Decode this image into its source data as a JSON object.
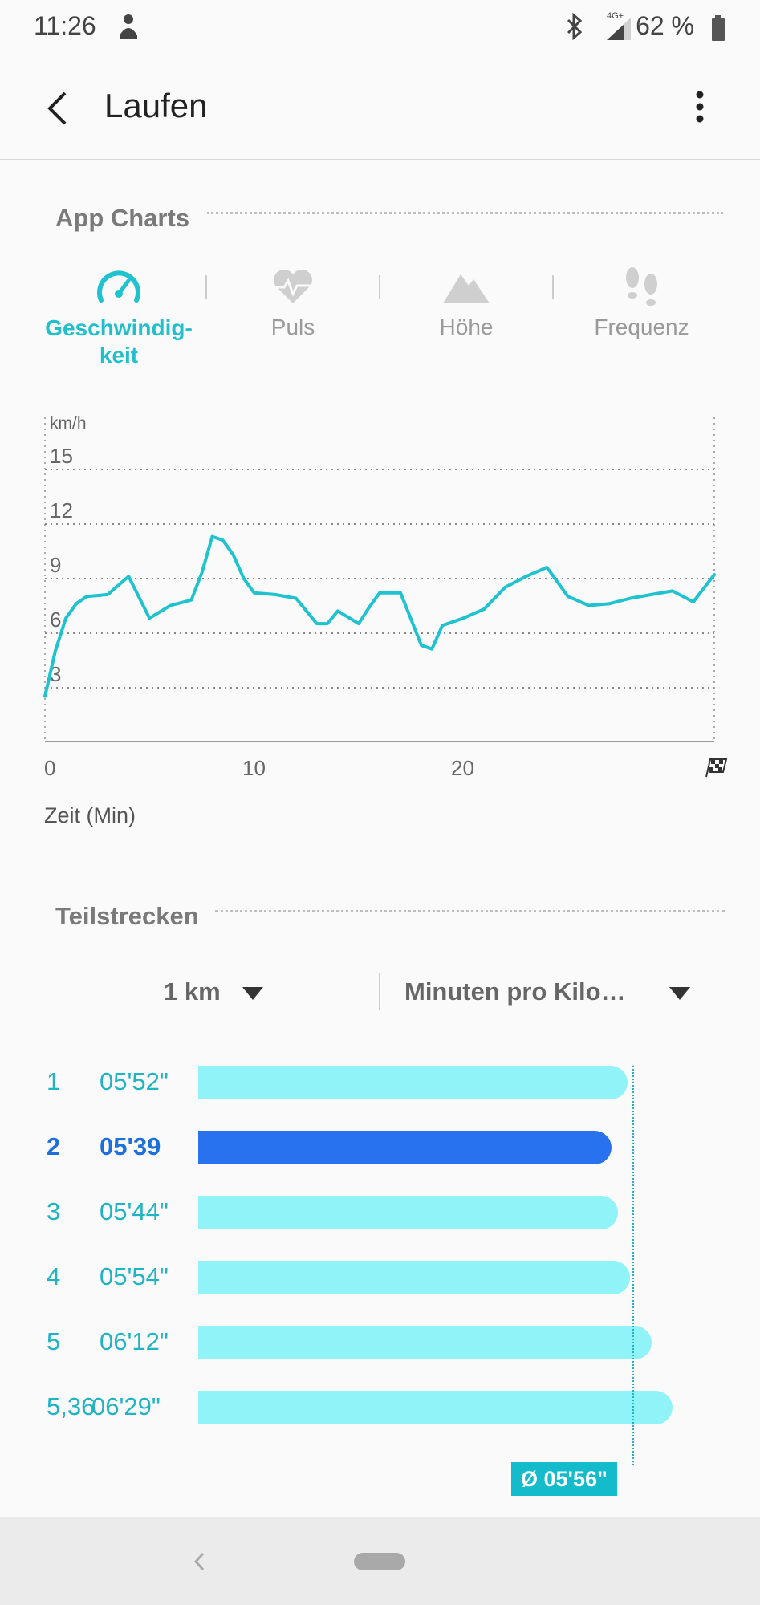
{
  "status_bar": {
    "time": "11:26",
    "network": "4G+",
    "battery": "62 %"
  },
  "app_bar": {
    "title": "Laufen",
    "back_icon": "arrow-left-icon",
    "menu_icon": "more-vert-icon"
  },
  "charts_section": {
    "title": "App Charts",
    "tabs": [
      {
        "label": "Geschwindig-\nkeit",
        "icon": "speedometer-icon",
        "active": true
      },
      {
        "label": "Puls",
        "icon": "heart-pulse-icon",
        "active": false
      },
      {
        "label": "Höhe",
        "icon": "mountain-icon",
        "active": false
      },
      {
        "label": "Frequenz",
        "icon": "footsteps-icon",
        "active": false
      }
    ]
  },
  "chart_data": {
    "type": "line",
    "ylabel": "km/h",
    "xlabel": "Zeit (Min)",
    "yticks": [
      "15",
      "12",
      "9",
      "6",
      "3"
    ],
    "xticks": [
      "0",
      "10",
      "20"
    ],
    "ylim": [
      0,
      15
    ],
    "xlim": [
      0,
      32
    ],
    "grid": true,
    "color": "#1fc2cf",
    "x": [
      0,
      0.5,
      1,
      1.5,
      2,
      3,
      4,
      5,
      6,
      7,
      7.5,
      8,
      8.5,
      9,
      9.5,
      10,
      11,
      12,
      13,
      13.5,
      14,
      15,
      15.5,
      16,
      17,
      18,
      18.5,
      19,
      20,
      21,
      22,
      23,
      24,
      24.5,
      25,
      26,
      27,
      28,
      29,
      30,
      31,
      32
    ],
    "y": [
      2.5,
      5,
      6.8,
      7.6,
      8,
      8.1,
      9.1,
      6.8,
      7.5,
      7.8,
      9.3,
      11.3,
      11.1,
      10.3,
      9,
      8.2,
      8.1,
      7.9,
      6.5,
      6.5,
      7.2,
      6.5,
      7.4,
      8.2,
      8.2,
      5.3,
      5.1,
      6.4,
      6.8,
      7.3,
      8.5,
      9.1,
      9.6,
      8.8,
      8,
      7.5,
      7.6,
      7.9,
      8.1,
      8.3,
      7.7,
      9.2
    ],
    "finish_icon": "checkered-flag-icon"
  },
  "splits_section": {
    "title": "Teilstrecken",
    "distance_select": "1 km",
    "metric_select": "Minuten pro Kilo…",
    "rows": [
      {
        "num": "1",
        "time": "05'52\"",
        "pace_sec": 352,
        "highlight": false
      },
      {
        "num": "2",
        "time": "05'39",
        "pace_sec": 339,
        "highlight": true
      },
      {
        "num": "3",
        "time": "05'44\"",
        "pace_sec": 344,
        "highlight": false
      },
      {
        "num": "4",
        "time": "05'54\"",
        "pace_sec": 354,
        "highlight": false
      },
      {
        "num": "5",
        "time": "06'12\"",
        "pace_sec": 372,
        "highlight": false
      },
      {
        "num": "5,36",
        "time": "06'29\"",
        "pace_sec": 389,
        "highlight": false
      }
    ],
    "average": "Ø 05'56\"",
    "average_sec": 356
  },
  "nav_bar": {
    "back_icon": "nav-back-icon",
    "home_icon": "home-pill-icon"
  }
}
